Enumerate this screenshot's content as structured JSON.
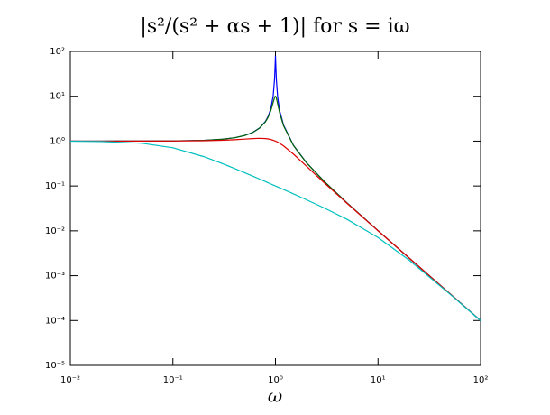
{
  "chart_data": {
    "type": "line",
    "title": "|s²/(s² + αs + 1)|  for  s = iω",
    "x_label": "ω",
    "xscale": "log",
    "yscale": "log",
    "grid": false,
    "xlim": [
      0.01,
      100
    ],
    "ylim": [
      1e-05,
      100
    ],
    "xticks": [
      {
        "value": 0.01,
        "label": "10⁻²"
      },
      {
        "value": 0.1,
        "label": "10⁻¹"
      },
      {
        "value": 1,
        "label": "10⁰"
      },
      {
        "value": 10,
        "label": "10¹"
      },
      {
        "value": 100,
        "label": "10²"
      }
    ],
    "yticks": [
      {
        "value": 1e-05,
        "label": "10⁻⁵"
      },
      {
        "value": 0.0001,
        "label": "10⁻⁴"
      },
      {
        "value": 0.001,
        "label": "10⁻³"
      },
      {
        "value": 0.01,
        "label": "10⁻²"
      },
      {
        "value": 0.1,
        "label": "10⁻¹"
      },
      {
        "value": 1,
        "label": "10⁰"
      },
      {
        "value": 10,
        "label": "10¹"
      },
      {
        "value": 100,
        "label": "10²"
      }
    ],
    "x": [
      0.01,
      0.02,
      0.05,
      0.1,
      0.2,
      0.3,
      0.4,
      0.5,
      0.6,
      0.7,
      0.8,
      0.85,
      0.9,
      0.95,
      0.98,
      0.99,
      1,
      1.01,
      1.02,
      1.05,
      1.1,
      1.2,
      1.5,
      2,
      3,
      5,
      10,
      20,
      50,
      100
    ],
    "series": [
      {
        "color": "#0000ff",
        "values": [
          1.0001,
          1.0004,
          1.0025,
          1.0101,
          1.0417,
          1.0989,
          1.1905,
          1.3333,
          1.5625,
          1.9605,
          2.7767,
          3.601,
          5.254,
          10.18,
          24.13,
          42.68,
          80,
          42.14,
          23.6,
          9.677,
          4.752,
          2.2714,
          0.7999,
          0.3333,
          0.125,
          0.04167,
          0.010101,
          0.002506,
          0.0004002,
          0.0001
        ]
      },
      {
        "color": "#006400",
        "values": [
          1.0001,
          1.0004,
          1.0025,
          1.01,
          1.0414,
          1.0983,
          1.1891,
          1.3304,
          1.5557,
          1.9426,
          2.7116,
          3.4457,
          4.7565,
          7.346,
          9.461,
          9.903,
          10,
          9.711,
          9.115,
          6.815,
          4.218,
          2.1927,
          0.7943,
          0.3326,
          0.1249,
          0.04166,
          0.010101,
          0.002506,
          0.0004002,
          0.0001
        ]
      },
      {
        "color": "#dd0000",
        "values": [
          1.0,
          1.0002,
          1.0013,
          1.005,
          1.0198,
          1.0436,
          1.0748,
          1.1094,
          1.1399,
          1.1546,
          1.1399,
          1.1184,
          1.0872,
          1.0471,
          1.0196,
          1.0099,
          1,
          0.9899,
          0.9796,
          0.9479,
          0.893,
          0.7824,
          0.5121,
          0.2774,
          0.117,
          0.0408,
          0.01005,
          0.002503,
          0.0004,
          0.0001
        ]
      },
      {
        "color": "#00bfbf",
        "values": [
          0.995,
          0.981,
          0.896,
          0.711,
          0.451,
          0.319,
          0.245,
          0.198,
          0.166,
          0.1425,
          0.1249,
          0.1176,
          0.1111,
          0.1053,
          0.102,
          0.101,
          0.1,
          0.099,
          0.098,
          0.0952,
          0.0909,
          0.0833,
          0.0664,
          0.0494,
          0.0322,
          0.018,
          0.00711,
          0.00224,
          0.000392,
          9.95e-05
        ]
      }
    ]
  }
}
